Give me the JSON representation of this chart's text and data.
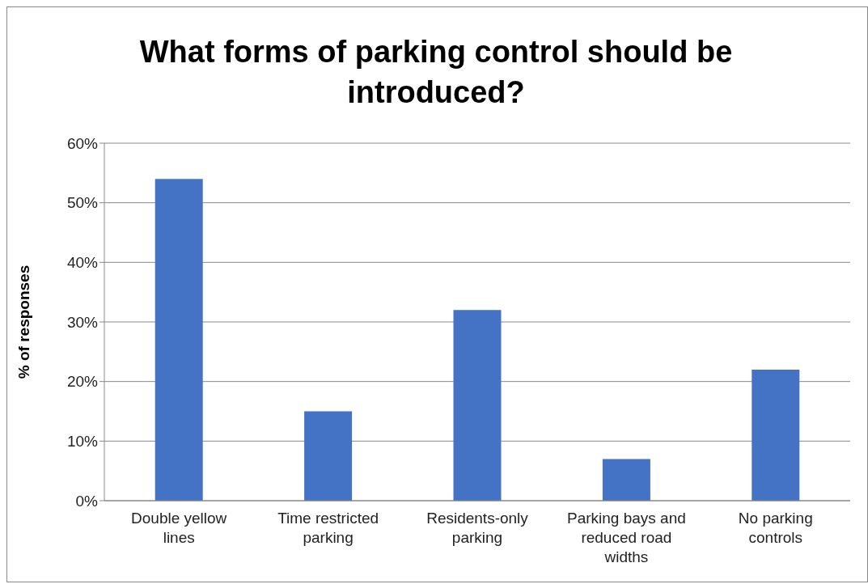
{
  "chart_data": {
    "type": "bar",
    "title": "What forms of parking control should be introduced?",
    "ylabel": "% of responses",
    "categories": [
      "Double yellow lines",
      "Time restricted parking",
      "Residents-only parking",
      "Parking bays and reduced road widths",
      "No parking controls"
    ],
    "values": [
      54,
      15,
      32,
      7,
      22
    ],
    "color": "#4472c4",
    "ylim": [
      0,
      60
    ],
    "yticks": [
      {
        "value": 0,
        "label": "0%"
      },
      {
        "value": 10,
        "label": "10%"
      },
      {
        "value": 20,
        "label": "20%"
      },
      {
        "value": 30,
        "label": "30%"
      },
      {
        "value": 40,
        "label": "40%"
      },
      {
        "value": 50,
        "label": "50%"
      },
      {
        "value": 60,
        "label": "60%"
      }
    ],
    "grid": "y",
    "legend": false
  }
}
